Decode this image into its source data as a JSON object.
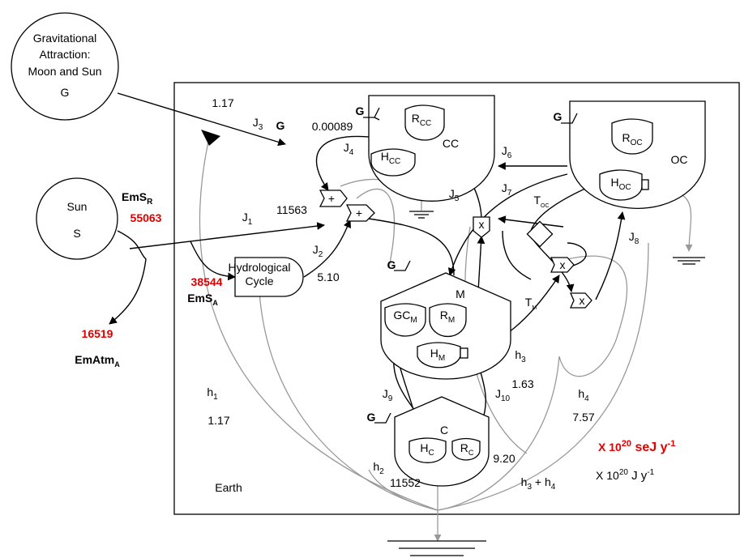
{
  "labels": [
    {
      "t": "Gravitational"
    },
    {
      "t": "Attraction:"
    },
    {
      "t": "Moon and Sun"
    },
    {
      "t": "G"
    },
    {
      "t": "Sun"
    },
    {
      "t": "S"
    },
    {
      "t": "EmS",
      "sub": "R"
    },
    {
      "t": "55063"
    },
    {
      "t": "38544"
    },
    {
      "t": "EmS",
      "sub": "A"
    },
    {
      "t": "16519"
    },
    {
      "t": "EmAtm",
      "sub": "A"
    },
    {
      "t": "Earth"
    },
    {
      "t": "1.17"
    },
    {
      "t": "J",
      "sub": "3"
    },
    {
      "t": "G"
    },
    {
      "t": "0.00089"
    },
    {
      "t": "J",
      "sub": "4"
    },
    {
      "t": "J",
      "sub": "1"
    },
    {
      "t": "11563"
    },
    {
      "t": "J",
      "sub": "2"
    },
    {
      "t": "5.10"
    },
    {
      "t": "Hydrological"
    },
    {
      "t": "Cycle"
    },
    {
      "t": "G"
    },
    {
      "t": "R",
      "sub": "CC"
    },
    {
      "t": "H",
      "sub": "CC"
    },
    {
      "t": "CC"
    },
    {
      "t": "J",
      "sub": "6"
    },
    {
      "t": "J",
      "sub": "5"
    },
    {
      "t": "J",
      "sub": "7"
    },
    {
      "t": "G"
    },
    {
      "t": "R",
      "sub": "OC"
    },
    {
      "t": "OC"
    },
    {
      "t": "H",
      "sub": "OC"
    },
    {
      "t": "T",
      "sub": "OC"
    },
    {
      "t": "J",
      "sub": "8"
    },
    {
      "t": "G"
    },
    {
      "t": "M"
    },
    {
      "t": "GC",
      "sub": "M"
    },
    {
      "t": "R",
      "sub": "M"
    },
    {
      "t": "H",
      "sub": "M"
    },
    {
      "t": "T",
      "sub": "M"
    },
    {
      "t": "h",
      "sub": "3"
    },
    {
      "t": "1.63"
    },
    {
      "t": "h",
      "sub": "4"
    },
    {
      "t": "7.57"
    },
    {
      "t": "J",
      "sub": "9"
    },
    {
      "t": "J",
      "sub": "10"
    },
    {
      "t": "G"
    },
    {
      "t": "C"
    },
    {
      "t": "R",
      "sub": "C"
    },
    {
      "t": "H",
      "sub": "C"
    },
    {
      "t": "h",
      "sub": "1"
    },
    {
      "t": "1.17"
    },
    {
      "t": "h",
      "sub": "2"
    },
    {
      "t": "11552"
    },
    {
      "t": "9.20"
    },
    {
      "t": "h",
      "sub": "3",
      "t2": " + h",
      "sub2": "4"
    },
    {
      "t": "X 10",
      "sup": "20",
      "t2": " seJ y",
      "sup2": "-1"
    },
    {
      "t": "X 10",
      "sup": "20",
      "t2": " J y",
      "sup2": "-1"
    },
    {
      "t": "+"
    },
    {
      "t": "+"
    },
    {
      "t": "x"
    },
    {
      "t": "x"
    },
    {
      "t": "x"
    }
  ]
}
